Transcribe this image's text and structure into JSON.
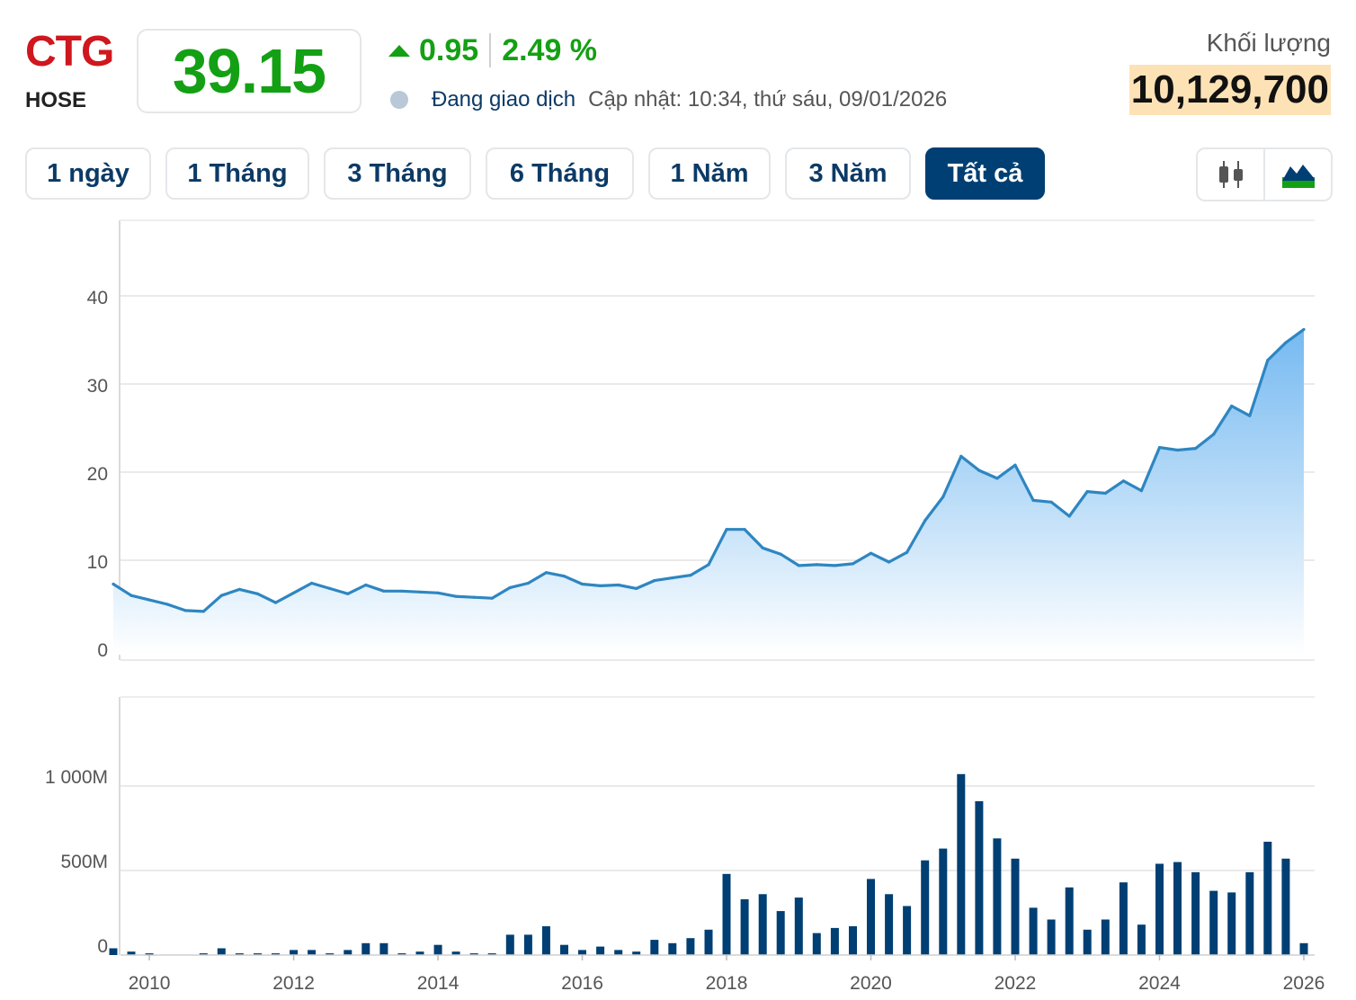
{
  "header": {
    "ticker": "CTG",
    "exchange": "HOSE",
    "price": "39.15",
    "change": "0.95",
    "change_pct": "2.49 %",
    "status": "Đang giao dịch",
    "updated": "Cập nhật: 10:34, thứ sáu, 09/01/2026",
    "volume_label": "Khối lượng",
    "volume_value": "10,129,700",
    "colors": {
      "ticker": "#d0161e",
      "up": "#14a014",
      "accent": "#003f73",
      "volume_bg": "#fde2b6"
    }
  },
  "tabs": [
    {
      "label": "1 ngày",
      "active": false
    },
    {
      "label": "1 Tháng",
      "active": false
    },
    {
      "label": "3 Tháng",
      "active": false
    },
    {
      "label": "6 Tháng",
      "active": false
    },
    {
      "label": "1 Năm",
      "active": false
    },
    {
      "label": "3 Năm",
      "active": false
    },
    {
      "label": "Tất cả",
      "active": true
    }
  ],
  "chart_toggle": [
    {
      "icon": "candlestick-icon"
    },
    {
      "icon": "area-chart-icon"
    }
  ],
  "chart_data": [
    {
      "type": "area",
      "title": "",
      "xlabel": "",
      "ylabel": "",
      "ylim": [
        0,
        49
      ],
      "y_ticks": [
        "0",
        "10",
        "20",
        "30",
        "40"
      ],
      "x_ticks": [
        "2010",
        "2012",
        "2014",
        "2016",
        "2018",
        "2020",
        "2022",
        "2024",
        "2026"
      ],
      "grid": true,
      "colors": {
        "line": "#2e86c1",
        "fill_top": "#6fb6f0",
        "fill_bottom": "#ffffff"
      },
      "series": [
        {
          "x": [
            "2009-07",
            "2009-10",
            "2010-01",
            "2010-04",
            "2010-07",
            "2010-10",
            "2011-01",
            "2011-04",
            "2011-07",
            "2011-10",
            "2012-01",
            "2012-04",
            "2012-07",
            "2012-10",
            "2013-01",
            "2013-04",
            "2013-07",
            "2013-10",
            "2014-01",
            "2014-04",
            "2014-07",
            "2014-10",
            "2015-01",
            "2015-04",
            "2015-07",
            "2015-10",
            "2016-01",
            "2016-04",
            "2016-07",
            "2016-10",
            "2017-01",
            "2017-04",
            "2017-07",
            "2017-10",
            "2018-01",
            "2018-04",
            "2018-07",
            "2018-10",
            "2019-01",
            "2019-04",
            "2019-07",
            "2019-10",
            "2020-01",
            "2020-04",
            "2020-07",
            "2020-10",
            "2021-01",
            "2021-04",
            "2021-07",
            "2021-10",
            "2022-01",
            "2022-04",
            "2022-07",
            "2022-10",
            "2023-01",
            "2023-04",
            "2023-07",
            "2023-10",
            "2024-01",
            "2024-04",
            "2024-07",
            "2024-10",
            "2025-01",
            "2025-04",
            "2025-07",
            "2025-10",
            "2026-01"
          ],
          "values": [
            7.4,
            6.1,
            5.6,
            5.1,
            4.4,
            4.3,
            6.1,
            6.8,
            6.3,
            5.3,
            6.4,
            7.5,
            6.9,
            6.3,
            7.3,
            6.6,
            6.6,
            6.5,
            6.4,
            6.0,
            5.9,
            5.8,
            7.0,
            7.5,
            8.7,
            8.3,
            7.4,
            7.2,
            7.3,
            6.9,
            7.8,
            8.1,
            8.4,
            9.6,
            13.6,
            13.6,
            11.5,
            10.8,
            9.5,
            9.6,
            9.5,
            9.7,
            10.9,
            9.9,
            11.0,
            14.6,
            17.3,
            21.9,
            20.3,
            19.4,
            20.9,
            16.9,
            16.7,
            15.1,
            17.9,
            17.7,
            19.1,
            18.0,
            22.9,
            22.6,
            22.8,
            24.4,
            27.6,
            26.5,
            32.8,
            34.8,
            36.3
          ]
        }
      ]
    },
    {
      "type": "bar",
      "title": "",
      "xlabel": "",
      "ylabel": "",
      "ylim": [
        0,
        1520
      ],
      "y_ticks": [
        "0",
        "500M",
        "1 000M"
      ],
      "x_ticks": [
        "2010",
        "2012",
        "2014",
        "2016",
        "2018",
        "2020",
        "2022",
        "2024",
        "2026"
      ],
      "grid": true,
      "colors": {
        "bar": "#003f73"
      },
      "series": [
        {
          "unit": "million shares",
          "x": [
            "2009-07",
            "2009-10",
            "2010-01",
            "2010-04",
            "2010-07",
            "2010-10",
            "2011-01",
            "2011-04",
            "2011-07",
            "2011-10",
            "2012-01",
            "2012-04",
            "2012-07",
            "2012-10",
            "2013-01",
            "2013-04",
            "2013-07",
            "2013-10",
            "2014-01",
            "2014-04",
            "2014-07",
            "2014-10",
            "2015-01",
            "2015-04",
            "2015-07",
            "2015-10",
            "2016-01",
            "2016-04",
            "2016-07",
            "2016-10",
            "2017-01",
            "2017-04",
            "2017-07",
            "2017-10",
            "2018-01",
            "2018-04",
            "2018-07",
            "2018-10",
            "2019-01",
            "2019-04",
            "2019-07",
            "2019-10",
            "2020-01",
            "2020-04",
            "2020-07",
            "2020-10",
            "2021-01",
            "2021-04",
            "2021-07",
            "2021-10",
            "2022-01",
            "2022-04",
            "2022-07",
            "2022-10",
            "2023-01",
            "2023-04",
            "2023-07",
            "2023-10",
            "2024-01",
            "2024-04",
            "2024-07",
            "2024-10",
            "2025-01",
            "2025-04",
            "2025-07",
            "2025-10",
            "2026-01"
          ],
          "values": [
            40,
            20,
            10,
            0,
            0,
            10,
            40,
            10,
            10,
            10,
            30,
            30,
            10,
            30,
            70,
            70,
            10,
            20,
            60,
            20,
            10,
            10,
            120,
            120,
            170,
            60,
            30,
            50,
            30,
            20,
            90,
            70,
            100,
            150,
            480,
            330,
            360,
            260,
            340,
            130,
            160,
            170,
            450,
            360,
            290,
            560,
            630,
            1070,
            910,
            690,
            570,
            280,
            210,
            400,
            150,
            210,
            430,
            180,
            540,
            550,
            490,
            380,
            370,
            490,
            670,
            570,
            70
          ]
        }
      ]
    }
  ]
}
